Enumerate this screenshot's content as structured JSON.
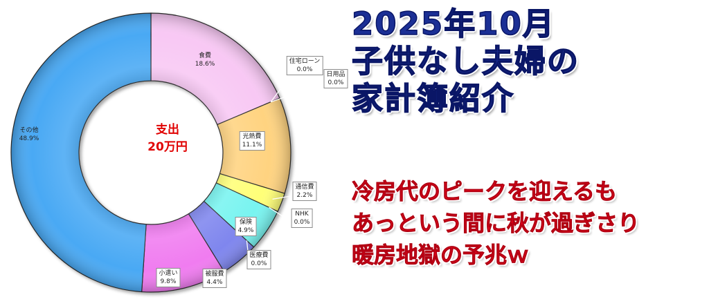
{
  "chart_data": {
    "type": "pie",
    "donut": true,
    "center_label": [
      "支出",
      "20万円"
    ],
    "legend": "none",
    "slices": [
      {
        "label": "食費",
        "value": 18.6,
        "value_text": "18.6%",
        "color": "#f8c8f4",
        "boxed": false
      },
      {
        "label": "住宅ローン",
        "value": 0.0,
        "value_text": "0.0%",
        "color": "#ffffff",
        "boxed": true
      },
      {
        "label": "日用品",
        "value": 0.0,
        "value_text": "0.0%",
        "color": "#ffffff",
        "boxed": true
      },
      {
        "label": "光熱費",
        "value": 11.1,
        "value_text": "11.1%",
        "color": "#ffd380",
        "boxed": true
      },
      {
        "label": "通信費",
        "value": 2.2,
        "value_text": "2.2%",
        "color": "#ffff78",
        "boxed": true
      },
      {
        "label": "NHK",
        "value": 0.0,
        "value_text": "0.0%",
        "color": "#ffffff",
        "boxed": true
      },
      {
        "label": "保険",
        "value": 4.9,
        "value_text": "4.9%",
        "color": "#78f4f0",
        "boxed": true
      },
      {
        "label": "医療費",
        "value": 0.0,
        "value_text": "0.0%",
        "color": "#ffffff",
        "boxed": true
      },
      {
        "label": "被服費",
        "value": 4.4,
        "value_text": "4.4%",
        "color": "#7f86ee",
        "boxed": true
      },
      {
        "label": "小遣い",
        "value": 9.8,
        "value_text": "9.8%",
        "color": "#f07cf0",
        "boxed": true
      },
      {
        "label": "その他",
        "value": 48.9,
        "value_text": "48.9%",
        "color": "#49a9f4",
        "boxed": false
      }
    ]
  },
  "headline": [
    "2025年10月",
    "子供なし夫婦の",
    "家計簿紹介"
  ],
  "subline": [
    "冷房代のピークを迎えるも",
    "あっという間に秋が過ぎさり",
    "暖房地獄の予兆ｗ"
  ],
  "colors": {
    "headline": "#1b2f95",
    "subline": "#e8001c",
    "center": "#e00000"
  }
}
